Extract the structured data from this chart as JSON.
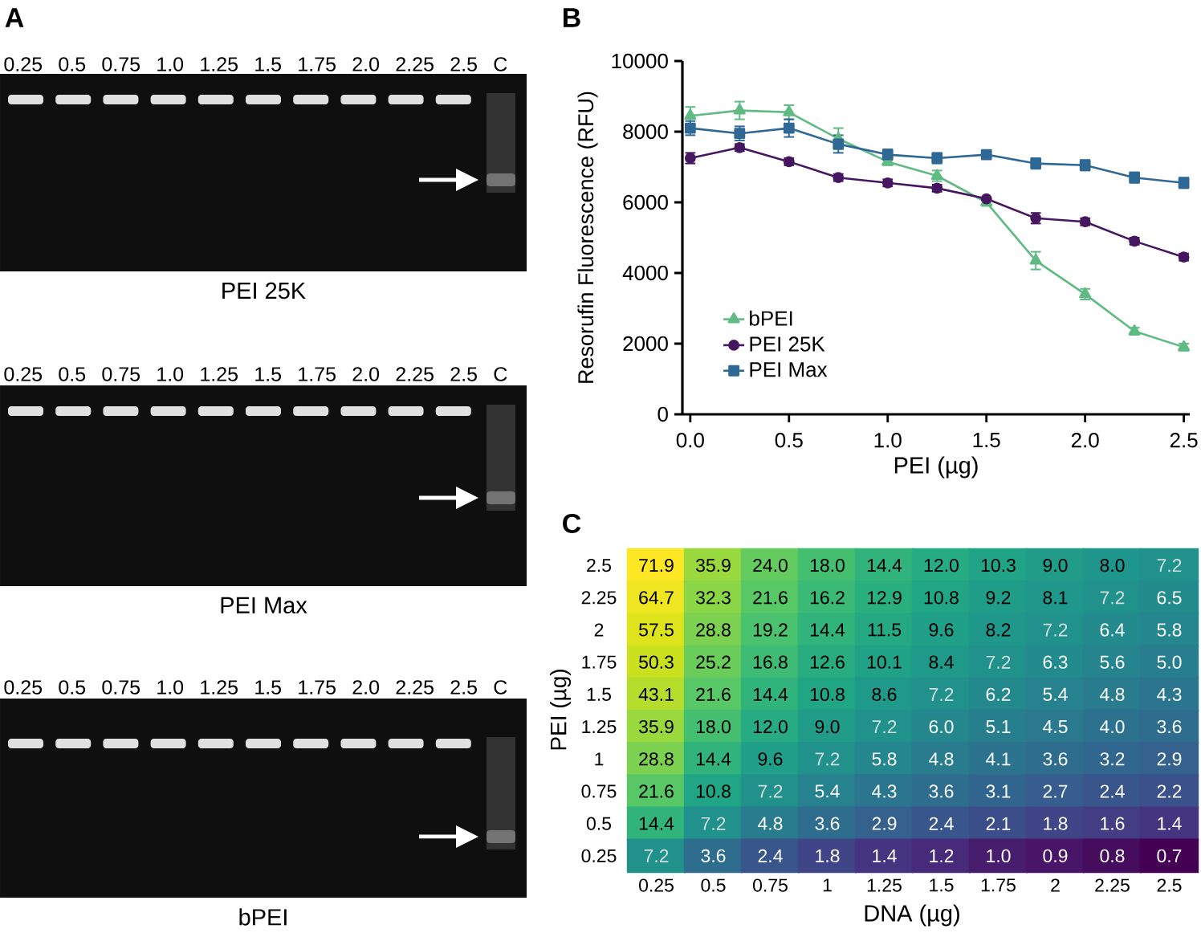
{
  "chart_data": [
    {
      "type": "other",
      "title": "PEI 25K",
      "annotations": [
        "A",
        "0.25 0.5 0.75 1.0 1.25 1.5 1.75 2.0 2.25 2.5 C"
      ]
    },
    {
      "type": "other",
      "title": "PEI Max",
      "annotations": [
        "0.25 0.5 0.75 1.0 1.25 1.5 1.75 2.0 2.25 2.5 C"
      ]
    },
    {
      "type": "other",
      "title": "bPEI",
      "annotations": [
        "0.25 0.5 0.75 1.0 1.25 1.5 1.75 2.0 2.25 2.5 C"
      ]
    },
    {
      "type": "line",
      "annotations": [
        "B"
      ],
      "xlabel": "PEI (µg)",
      "ylabel": "Resorufin Fluorescence (RFU)",
      "x": [
        0,
        0.25,
        0.5,
        0.75,
        1,
        1.25,
        1.5,
        1.75,
        2,
        2.25,
        2.5
      ],
      "xlim": [
        -0.04,
        2.53
      ],
      "xticks": [
        {
          "value": 0,
          "label": "0.0"
        },
        0.5,
        {
          "value": 1,
          "label": "1.0"
        },
        1.5,
        {
          "value": 2,
          "label": "2.0"
        },
        2.5
      ],
      "ylim": [
        0,
        10000
      ],
      "yticks": [
        0,
        2000,
        4000,
        6000,
        8000,
        10000
      ],
      "legend": "bottom left",
      "line_style": "solid",
      "series": [
        {
          "name": "bPEI",
          "color": "#5fbb83",
          "marker": "triangle",
          "values": [
            8450,
            8600,
            8550,
            7800,
            7150,
            6750,
            6000,
            4350,
            3400,
            2350,
            1900
          ],
          "errors": [
            250,
            250,
            200,
            300,
            100,
            150,
            100,
            250,
            150,
            100,
            100
          ]
        },
        {
          "name": "PEI 25K",
          "color": "#471660",
          "marker": "circle",
          "values": [
            7250,
            7550,
            7150,
            6700,
            6550,
            6400,
            6100,
            5550,
            5450,
            4900,
            4450
          ],
          "errors": [
            150,
            100,
            100,
            100,
            100,
            100,
            null,
            150,
            100,
            100,
            100
          ]
        },
        {
          "name": "PEI Max",
          "color": "#2f6894",
          "marker": "square",
          "values": [
            8100,
            7950,
            8100,
            7650,
            7350,
            7250,
            7350,
            7100,
            7050,
            6700,
            6550
          ],
          "errors": [
            200,
            200,
            250,
            250,
            150,
            150,
            100,
            150,
            150,
            150,
            150
          ]
        }
      ]
    },
    {
      "type": "heatmap",
      "annotations": [
        "C"
      ],
      "xlabel": "DNA (µg)",
      "ylabel": "PEI (µg)",
      "categories": [
        "0.25",
        "0.5",
        "0.75",
        "1",
        "1.25",
        "1.5",
        "1.75",
        "2",
        "2.25",
        "2.5"
      ],
      "y_categories": [
        "2.5",
        "2.25",
        "2",
        "1.75",
        "1.5",
        "1.25",
        "1",
        "0.75",
        "0.5",
        "0.25"
      ],
      "cells": [
        [
          71.9,
          35.9,
          24.0,
          18.0,
          14.4,
          12.0,
          10.3,
          9.0,
          8.0,
          7.2
        ],
        [
          64.7,
          32.3,
          21.6,
          16.2,
          12.9,
          10.8,
          9.2,
          8.1,
          7.2,
          6.5
        ],
        [
          57.5,
          28.8,
          19.2,
          14.4,
          11.5,
          9.6,
          8.2,
          7.2,
          6.4,
          5.8
        ],
        [
          50.3,
          25.2,
          16.8,
          12.6,
          10.1,
          8.4,
          7.2,
          6.3,
          5.6,
          5.0
        ],
        [
          43.1,
          21.6,
          14.4,
          10.8,
          8.6,
          7.2,
          6.2,
          5.4,
          4.8,
          4.3
        ],
        [
          35.9,
          18.0,
          12.0,
          9.0,
          7.2,
          6.0,
          5.1,
          4.5,
          4.0,
          3.6
        ],
        [
          28.8,
          14.4,
          9.6,
          7.2,
          5.8,
          4.8,
          4.1,
          3.6,
          3.2,
          2.9
        ],
        [
          21.6,
          10.8,
          7.2,
          5.4,
          4.3,
          3.6,
          3.1,
          2.7,
          2.4,
          2.2
        ],
        [
          14.4,
          7.2,
          4.8,
          3.6,
          2.9,
          2.4,
          2.1,
          1.8,
          1.6,
          1.4
        ],
        [
          7.2,
          3.6,
          2.4,
          1.8,
          1.4,
          1.2,
          1.0,
          0.9,
          0.8,
          0.7
        ]
      ],
      "cell_labels": [
        [
          "71.9",
          "35.9",
          "24.0",
          "18.0",
          "14.4",
          "12.0",
          "10.3",
          "9.0",
          "8.0",
          "7.2"
        ],
        [
          "64.7",
          "32.3",
          "21.6",
          "16.2",
          "12.9",
          "10.8",
          "9.2",
          "8.1",
          "7.2",
          "6.5"
        ],
        [
          "57.5",
          "28.8",
          "19.2",
          "14.4",
          "11.5",
          "9.6",
          "8.2",
          "7.2",
          "6.4",
          "5.8"
        ],
        [
          "50.3",
          "25.2",
          "16.8",
          "12.6",
          "10.1",
          "8.4",
          "7.2",
          "6.3",
          "5.6",
          "5.0"
        ],
        [
          "43.1",
          "21.6",
          "14.4",
          "10.8",
          "8.6",
          "7.2",
          "6.2",
          "5.4",
          "4.8",
          "4.3"
        ],
        [
          "35.9",
          "18.0",
          "12.0",
          "9.0",
          "7.2",
          "6.0",
          "5.1",
          "4.5",
          "4.0",
          "3.6"
        ],
        [
          "28.8",
          "14.4",
          "9.6",
          "7.2",
          "5.8",
          "4.8",
          "4.1",
          "3.6",
          "3.2",
          "2.9"
        ],
        [
          "21.6",
          "10.8",
          "7.2",
          "5.4",
          "4.3",
          "3.6",
          "3.1",
          "2.7",
          "2.4",
          "2.2"
        ],
        [
          "14.4",
          "7.2",
          "4.8",
          "3.6",
          "2.9",
          "2.4",
          "2.1",
          "1.8",
          "1.6",
          "1.4"
        ],
        [
          "7.2",
          "3.6",
          "2.4",
          "1.8",
          "1.4",
          "1.2",
          "1.0",
          "0.9",
          "0.8",
          "0.7"
        ]
      ]
    }
  ]
}
